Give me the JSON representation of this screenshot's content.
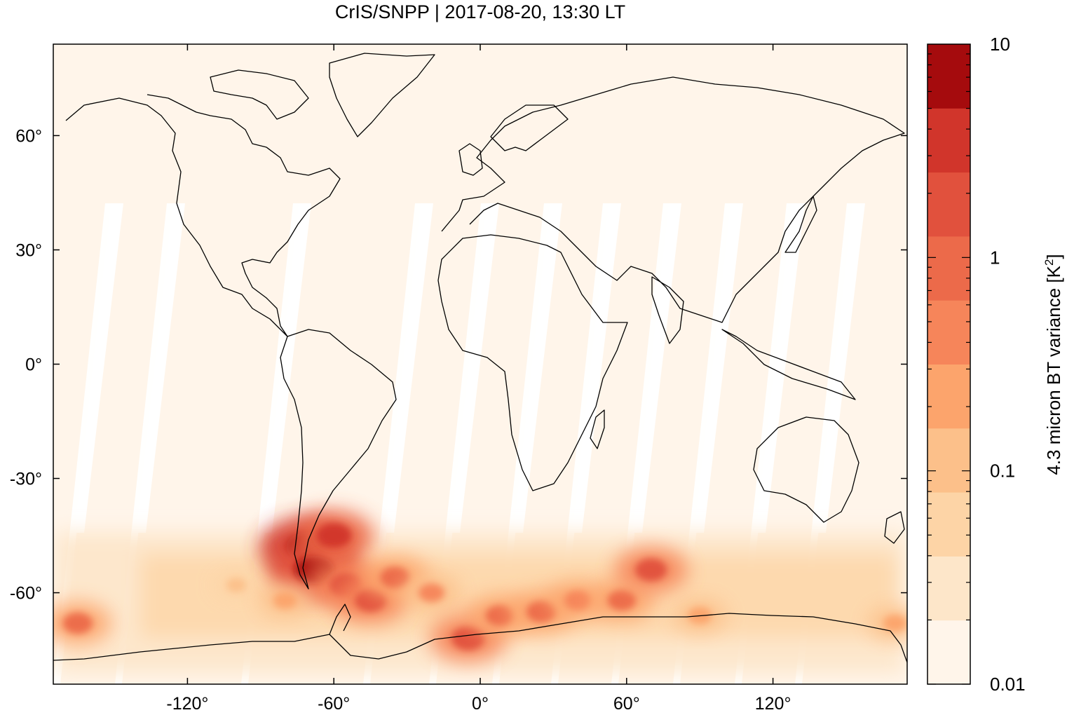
{
  "title": "CrIS/SNPP | 2017-08-20, 13:30 LT",
  "chart_data": {
    "type": "heatmap",
    "title": "CrIS/SNPP | 2017-08-20, 13:30 LT",
    "xlabel": "",
    "ylabel": "",
    "x_ticks": [
      "-120°",
      "-60°",
      "0°",
      "60°",
      "120°"
    ],
    "x_tick_values": [
      -120,
      -60,
      0,
      60,
      120
    ],
    "y_ticks": [
      "60°",
      "30°",
      "0°",
      "-30°",
      "-60°"
    ],
    "y_tick_values": [
      60,
      30,
      0,
      -30,
      -60
    ],
    "xlim": [
      -175,
      175
    ],
    "ylim": [
      -84,
      84
    ],
    "colorbar": {
      "label": "4.3 micron BT variance [K²]",
      "label_main": "4.3 micron BT variance [K",
      "label_sup": "2",
      "label_end": "]",
      "scale": "log",
      "range": [
        0.01,
        10
      ],
      "tick_labels": [
        "10",
        "1",
        "0.1",
        "0.01"
      ],
      "tick_values": [
        10,
        1,
        0.1,
        0.01
      ],
      "colors": [
        "#fff5ea",
        "#fde6c9",
        "#fdd4a6",
        "#fcc08a",
        "#fca46c",
        "#f6855a",
        "#ec6a4a",
        "#e1513d",
        "#d1352b",
        "#a50b0d"
      ]
    },
    "hotspots": [
      {
        "lon": -71,
        "lat": -48,
        "level": 10
      },
      {
        "lon": -68,
        "lat": -54,
        "level": 8
      },
      {
        "lon": -60,
        "lat": -45,
        "level": 3
      },
      {
        "lon": -55,
        "lat": -58,
        "level": 2
      },
      {
        "lon": -45,
        "lat": -62,
        "level": 1.5
      },
      {
        "lon": -35,
        "lat": -56,
        "level": 1
      },
      {
        "lon": -20,
        "lat": -60,
        "level": 0.5
      },
      {
        "lon": -5,
        "lat": -72,
        "level": 2
      },
      {
        "lon": 8,
        "lat": -66,
        "level": 0.8
      },
      {
        "lon": 25,
        "lat": -65,
        "level": 1
      },
      {
        "lon": 40,
        "lat": -62,
        "level": 0.6
      },
      {
        "lon": 58,
        "lat": -62,
        "level": 0.8
      },
      {
        "lon": 70,
        "lat": -54,
        "level": 1.5
      },
      {
        "lon": -165,
        "lat": -68,
        "level": 1
      },
      {
        "lon": -100,
        "lat": -58,
        "level": 0.15
      },
      {
        "lon": -80,
        "lat": -62,
        "level": 0.3
      },
      {
        "lon": 90,
        "lat": -66,
        "level": 0.3
      },
      {
        "lon": 170,
        "lat": -68,
        "level": 0.3
      }
    ]
  }
}
